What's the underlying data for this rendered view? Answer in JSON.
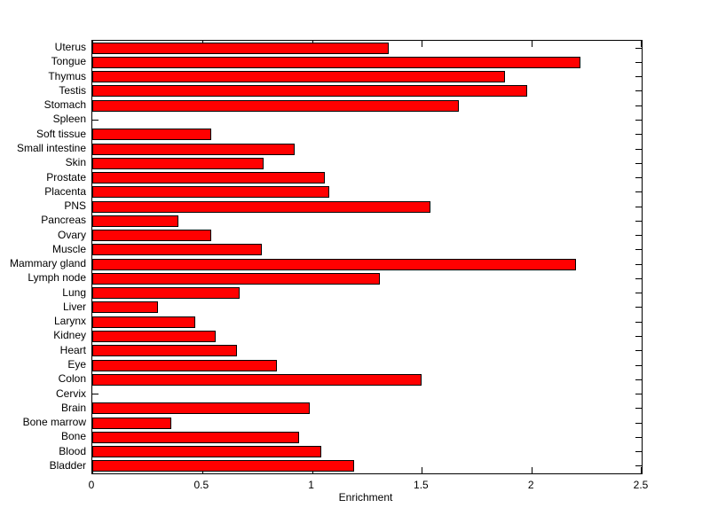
{
  "figure": {
    "background_color": "#ffffff",
    "bar_color": "#ff0000",
    "bar_edge_color": "#000000",
    "axis_color": "#000000",
    "text_color": "#000000"
  },
  "chart_data": {
    "type": "bar",
    "orientation": "horizontal",
    "title": "",
    "xlabel": "Enrichment",
    "ylabel": "",
    "xlim": [
      0,
      2.5
    ],
    "xticks": [
      0,
      0.5,
      1,
      1.5,
      2,
      2.5
    ],
    "xtick_labels": [
      "0",
      "0.5",
      "1",
      "1.5",
      "2",
      "2.5"
    ],
    "grid": false,
    "legend": false,
    "categories": [
      "Uterus",
      "Tongue",
      "Thymus",
      "Testis",
      "Stomach",
      "Spleen",
      "Soft tissue",
      "Small intestine",
      "Skin",
      "Prostate",
      "Placenta",
      "PNS",
      "Pancreas",
      "Ovary",
      "Muscle",
      "Mammary gland",
      "Lymph node",
      "Lung",
      "Liver",
      "Larynx",
      "Kidney",
      "Heart",
      "Eye",
      "Colon",
      "Cervix",
      "Brain",
      "Bone marrow",
      "Bone",
      "Blood",
      "Bladder"
    ],
    "values": [
      1.35,
      2.22,
      1.88,
      1.98,
      1.67,
      0,
      0.54,
      0.92,
      0.78,
      1.06,
      1.08,
      1.54,
      0.39,
      0.54,
      0.77,
      2.2,
      1.31,
      0.67,
      0.3,
      0.47,
      0.56,
      0.66,
      0.84,
      1.5,
      0,
      0.99,
      0.36,
      0.94,
      1.04,
      1.19
    ]
  }
}
